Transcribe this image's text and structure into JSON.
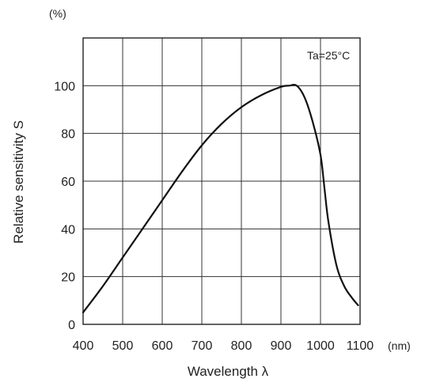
{
  "chart_data": {
    "type": "line",
    "title": "",
    "xlabel": "Wavelength λ",
    "ylabel": "Relative sensitivity S",
    "x_unit": "(nm)",
    "y_unit": "(%)",
    "annotation": "Ta=25°C",
    "xlim": [
      400,
      1100
    ],
    "ylim": [
      0,
      120
    ],
    "x_ticks": [
      "400",
      "500",
      "600",
      "700",
      "800",
      "900",
      "1000",
      "1100"
    ],
    "y_ticks": [
      "0",
      "20",
      "40",
      "60",
      "80",
      "100"
    ],
    "grid": true,
    "series": [
      {
        "x": [
          400,
          450,
          500,
          550,
          600,
          650,
          700,
          750,
          800,
          850,
          900,
          920,
          940,
          960,
          980,
          1000,
          1010,
          1020,
          1040,
          1060,
          1080,
          1095
        ],
        "y": [
          5,
          16,
          28,
          40,
          52,
          64,
          75,
          84,
          91,
          96,
          99.5,
          100,
          100,
          95,
          85,
          71,
          57,
          43,
          25,
          16,
          11,
          8
        ]
      }
    ]
  }
}
